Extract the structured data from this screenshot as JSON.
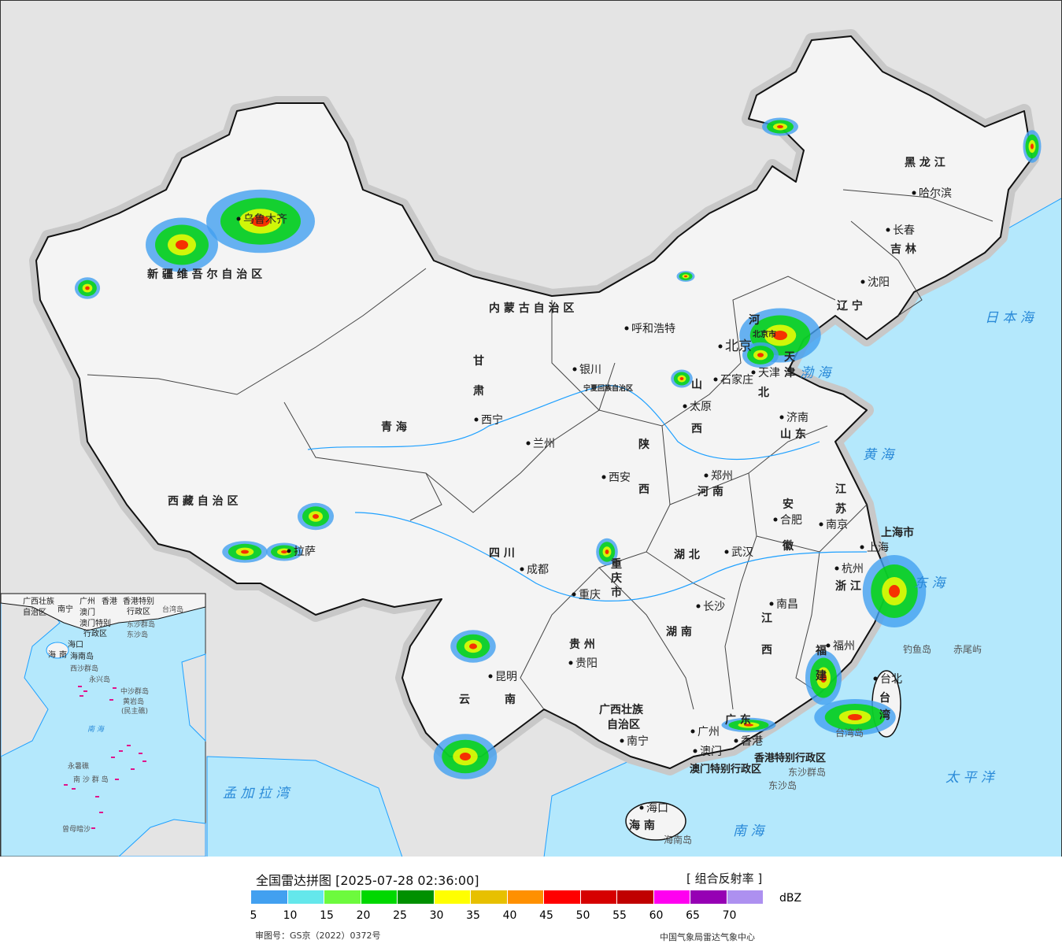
{
  "header": {
    "title": "全国雷达拼图 [2025-07-28 02:36:00]",
    "product": "[ 组合反射率 ]"
  },
  "legend": {
    "unit": "dBZ",
    "colors": [
      "#42a0f0",
      "#64e7eb",
      "#6dfa3d",
      "#00d800",
      "#009000",
      "#ffff00",
      "#e7c000",
      "#ff9000",
      "#ff0000",
      "#d60000",
      "#c00000",
      "#ff00f0",
      "#9600b4",
      "#ad90f0"
    ],
    "ticks": [
      "5",
      "10",
      "15",
      "20",
      "25",
      "30",
      "35",
      "40",
      "45",
      "50",
      "55",
      "60",
      "65",
      "70"
    ]
  },
  "footer": {
    "approval": "审图号：GS京（2022）0372号",
    "organization": "中国气象局雷达气象中心"
  },
  "map": {
    "colors": {
      "land_china": "#f4f4f4",
      "land_other": "#e4e4e4",
      "sea": "#b4e8fc",
      "border": "#111111",
      "river": "#1ea0ff"
    },
    "provinces": [
      "新 疆 维 吾 尔 自 治 区",
      "西 藏 自 治 区",
      "青   海",
      "甘",
      "肃",
      "内   蒙   古   自   治   区",
      "黑  龙  江",
      "吉  林",
      "辽  宁",
      "河",
      "北",
      "山",
      "西",
      "山  东",
      "陕",
      "西",
      "河  南",
      "江",
      "苏",
      "安",
      "徽",
      "湖  北",
      "四   川",
      "重",
      "庆",
      "市",
      "贵  州",
      "云",
      "南",
      "湖  南",
      "江",
      "西",
      "浙 江",
      "福",
      "建",
      "广  东",
      "广西壮族",
      "自治区",
      "海  南",
      "台",
      "湾",
      "宁夏回族自治区",
      "上海市",
      "北京市",
      "天",
      "津",
      "香港特别行政区",
      "澳门特别行政区"
    ],
    "cities": [
      "乌鲁木齐",
      "拉萨",
      "西宁",
      "兰州",
      "银川",
      "呼和浩特",
      "哈尔滨",
      "长春",
      "沈阳",
      "北京",
      "天津",
      "石家庄",
      "太原",
      "济南",
      "郑州",
      "西安",
      "合肥",
      "南京",
      "上海",
      "杭州",
      "武汉",
      "成都",
      "重庆",
      "长沙",
      "南昌",
      "福州",
      "台北",
      "贵阳",
      "昆明",
      "南宁",
      "广州",
      "澳门",
      "香港",
      "海口"
    ],
    "seas": [
      "日 本 海",
      "渤 海",
      "黄  海",
      "东  海",
      "太  平  洋",
      "南  海",
      "孟 加 拉 湾"
    ],
    "islands": [
      "台湾岛",
      "海南岛",
      "钓鱼岛",
      "赤尾屿",
      "东沙群岛",
      "东沙岛"
    ],
    "inset": [
      "广西壮族",
      "自治区",
      "南宁",
      "广州",
      "澳门",
      "香港",
      "香港特别",
      "行政区",
      "澳门特别",
      "行政区",
      "海口",
      "海",
      "南",
      "海南岛",
      "西沙群岛",
      "永兴岛",
      "中沙群岛",
      "黄岩岛",
      "(民主礁)",
      "南   海",
      "永暑礁",
      "南 沙 群 岛",
      "曾母暗沙",
      "东沙群岛",
      "东沙岛",
      "台湾岛"
    ]
  }
}
